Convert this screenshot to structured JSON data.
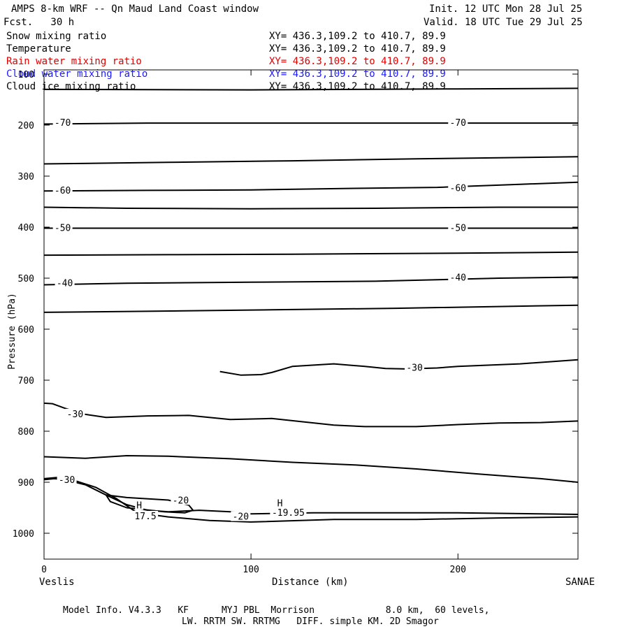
{
  "header": {
    "title": "AMPS 8-km WRF -- Qn Maud Land Coast window",
    "fcst": "Fcst.   30 h",
    "init": "Init. 12 UTC Mon 28 Jul 25",
    "valid": "Valid. 18 UTC Tue 29 Jul 25"
  },
  "fields": [
    {
      "name": "Snow mixing ratio",
      "xy": "XY= 436.3,109.2 to 410.7, 89.9",
      "color": "#000000"
    },
    {
      "name": "Temperature",
      "xy": "XY= 436.3,109.2 to 410.7, 89.9",
      "color": "#000000"
    },
    {
      "name": "Rain water mixing ratio",
      "xy": "XY= 436.3,109.2 to 410.7, 89.9",
      "color": "#e00000"
    },
    {
      "name": "Cloud water mixing ratio",
      "xy": "XY= 436.3,109.2 to 410.7, 89.9",
      "color": "#1a1aff"
    },
    {
      "name": "Cloud ice mixing ratio",
      "xy": "XY= 436.3,109.2 to 410.7, 89.9",
      "color": "#000000"
    }
  ],
  "chart_data": {
    "type": "contour",
    "xlabel": "Distance (km)",
    "ylabel": "Pressure (hPa)",
    "xlim": [
      0,
      258
    ],
    "ylim": [
      1050,
      100
    ],
    "x_ticks": [
      0,
      100,
      200
    ],
    "y_ticks": [
      100,
      200,
      300,
      400,
      500,
      600,
      700,
      800,
      900,
      1000
    ],
    "left_endpoint": "Veslis",
    "right_endpoint": "SANAE",
    "series": [
      {
        "points": [
          [
            0,
            130
          ],
          [
            100,
            131
          ],
          [
            200,
            129
          ],
          [
            258,
            128
          ]
        ]
      },
      {
        "points": [
          [
            0,
            198
          ],
          [
            50,
            196
          ],
          [
            100,
            196
          ],
          [
            150,
            196
          ],
          [
            200,
            196
          ],
          [
            258,
            196
          ]
        ]
      },
      {
        "points": [
          [
            0,
            276
          ],
          [
            60,
            273
          ],
          [
            120,
            270
          ],
          [
            180,
            266
          ],
          [
            220,
            264
          ],
          [
            258,
            262
          ]
        ]
      },
      {
        "points": [
          [
            0,
            329
          ],
          [
            50,
            328
          ],
          [
            100,
            327
          ],
          [
            150,
            324
          ],
          [
            190,
            322
          ],
          [
            230,
            316
          ],
          [
            258,
            312
          ]
        ]
      },
      {
        "points": [
          [
            0,
            361
          ],
          [
            40,
            363
          ],
          [
            100,
            364
          ],
          [
            160,
            363
          ],
          [
            220,
            361
          ],
          [
            258,
            361
          ]
        ]
      },
      {
        "points": [
          [
            0,
            402
          ],
          [
            100,
            402
          ],
          [
            200,
            402
          ],
          [
            258,
            402
          ]
        ]
      },
      {
        "points": [
          [
            0,
            455
          ],
          [
            60,
            454
          ],
          [
            120,
            453
          ],
          [
            200,
            451
          ],
          [
            258,
            449
          ]
        ]
      },
      {
        "points": [
          [
            0,
            513
          ],
          [
            40,
            510
          ],
          [
            100,
            508
          ],
          [
            160,
            506
          ],
          [
            220,
            500
          ],
          [
            258,
            498
          ]
        ]
      },
      {
        "points": [
          [
            0,
            567
          ],
          [
            50,
            565
          ],
          [
            110,
            562
          ],
          [
            170,
            559
          ],
          [
            258,
            553
          ]
        ]
      },
      {
        "points": [
          [
            0,
            745
          ],
          [
            4,
            746
          ],
          [
            10,
            755
          ],
          [
            20,
            767
          ],
          [
            30,
            773
          ],
          [
            50,
            770
          ],
          [
            70,
            769
          ],
          [
            90,
            777
          ],
          [
            110,
            775
          ],
          [
            140,
            788
          ],
          [
            155,
            791
          ],
          [
            180,
            791
          ],
          [
            200,
            787
          ],
          [
            220,
            784
          ],
          [
            240,
            783
          ],
          [
            258,
            780
          ]
        ]
      },
      {
        "points": [
          [
            85,
            683
          ],
          [
            95,
            690
          ],
          [
            105,
            689
          ],
          [
            110,
            685
          ],
          [
            120,
            673
          ],
          [
            140,
            668
          ],
          [
            155,
            673
          ],
          [
            160,
            675
          ],
          [
            165,
            677
          ],
          [
            175,
            678
          ],
          [
            190,
            676
          ],
          [
            200,
            673
          ],
          [
            230,
            668
          ],
          [
            258,
            660
          ]
        ]
      },
      {
        "points": [
          [
            0,
            850
          ],
          [
            20,
            853
          ],
          [
            40,
            848
          ],
          [
            60,
            849
          ],
          [
            90,
            854
          ],
          [
            120,
            861
          ],
          [
            150,
            866
          ],
          [
            180,
            874
          ],
          [
            210,
            884
          ],
          [
            240,
            893
          ],
          [
            258,
            900
          ]
        ]
      },
      {
        "points": [
          [
            0,
            895
          ],
          [
            5,
            893
          ],
          [
            10,
            895
          ],
          [
            20,
            905
          ],
          [
            30,
            925
          ],
          [
            40,
            944
          ],
          [
            50,
            955
          ],
          [
            60,
            958
          ],
          [
            75,
            955
          ],
          [
            90,
            958
          ],
          [
            100,
            962
          ],
          [
            130,
            960
          ],
          [
            160,
            960
          ],
          [
            200,
            960
          ],
          [
            240,
            962
          ],
          [
            258,
            963
          ]
        ]
      },
      {
        "points": [
          [
            30,
            925
          ],
          [
            40,
            930
          ],
          [
            60,
            935
          ],
          [
            70,
            945
          ],
          [
            72,
            955
          ],
          [
            68,
            960
          ],
          [
            58,
            958
          ],
          [
            40,
            950
          ],
          [
            32,
            938
          ],
          [
            30,
            925
          ]
        ]
      },
      {
        "points": [
          [
            0,
            893
          ],
          [
            8,
            890
          ],
          [
            15,
            897
          ],
          [
            25,
            910
          ],
          [
            35,
            932
          ],
          [
            45,
            960
          ],
          [
            60,
            968
          ],
          [
            80,
            975
          ],
          [
            100,
            978
          ],
          [
            140,
            973
          ],
          [
            180,
            973
          ],
          [
            220,
            970
          ],
          [
            258,
            968
          ]
        ]
      }
    ],
    "contour_labels": [
      {
        "text": "-70",
        "x": 9,
        "p": 196
      },
      {
        "text": "-70",
        "x": 200,
        "p": 196
      },
      {
        "text": "-60",
        "x": 9,
        "p": 329
      },
      {
        "text": "-60",
        "x": 200,
        "p": 324
      },
      {
        "text": "-50",
        "x": 9,
        "p": 402
      },
      {
        "text": "-50",
        "x": 200,
        "p": 402
      },
      {
        "text": "-40",
        "x": 10,
        "p": 510
      },
      {
        "text": "-40",
        "x": 200,
        "p": 499
      },
      {
        "text": "-30",
        "x": 15,
        "p": 767
      },
      {
        "text": "-30",
        "x": 179,
        "p": 676
      },
      {
        "text": "-30",
        "x": 11,
        "p": 896
      },
      {
        "text": "-20",
        "x": 66,
        "p": 936
      },
      {
        "text": "-20",
        "x": 95,
        "p": 968
      },
      {
        "text": "H",
        "x": 46,
        "p": 946
      },
      {
        "text": "17.5",
        "x": 49,
        "p": 967
      },
      {
        "text": "H",
        "x": 114,
        "p": 942
      },
      {
        "text": "-19.95",
        "x": 118,
        "p": 960
      }
    ]
  },
  "footer": {
    "model_info": "Model Info. V4.3.3   KF      MYJ PBL  Morrison             8.0 km,  60 levels,",
    "physics": "LW. RRTM SW. RRTMG   DIFF. simple KM. 2D Smagor"
  }
}
